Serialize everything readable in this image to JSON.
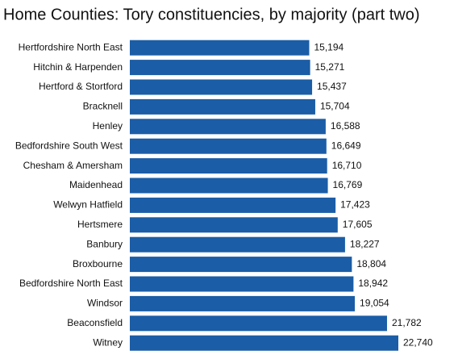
{
  "chart_data": {
    "type": "bar",
    "orientation": "horizontal",
    "title": "Home Counties: Tory constituencies, by majority (part two)",
    "color": "#1b5da6",
    "categories": [
      "Hertfordshire North East",
      "Hitchin & Harpenden",
      "Hertford & Stortford",
      "Bracknell",
      "Henley",
      "Bedfordshire South West",
      "Chesham & Amersham",
      "Maidenhead",
      "Welwyn Hatfield",
      "Hertsmere",
      "Banbury",
      "Broxbourne",
      "Bedfordshire North East",
      "Windsor",
      "Beaconsfield",
      "Witney"
    ],
    "values": [
      15194,
      15271,
      15437,
      15704,
      16588,
      16649,
      16710,
      16769,
      17423,
      17605,
      18227,
      18804,
      18942,
      19054,
      21782,
      22740
    ],
    "value_labels": [
      "15,194",
      "15,271",
      "15,437",
      "15,704",
      "16,588",
      "16,649",
      "16,710",
      "16,769",
      "17,423",
      "17,605",
      "18,227",
      "18,804",
      "18,942",
      "19,054",
      "21,782",
      "22,740"
    ]
  }
}
